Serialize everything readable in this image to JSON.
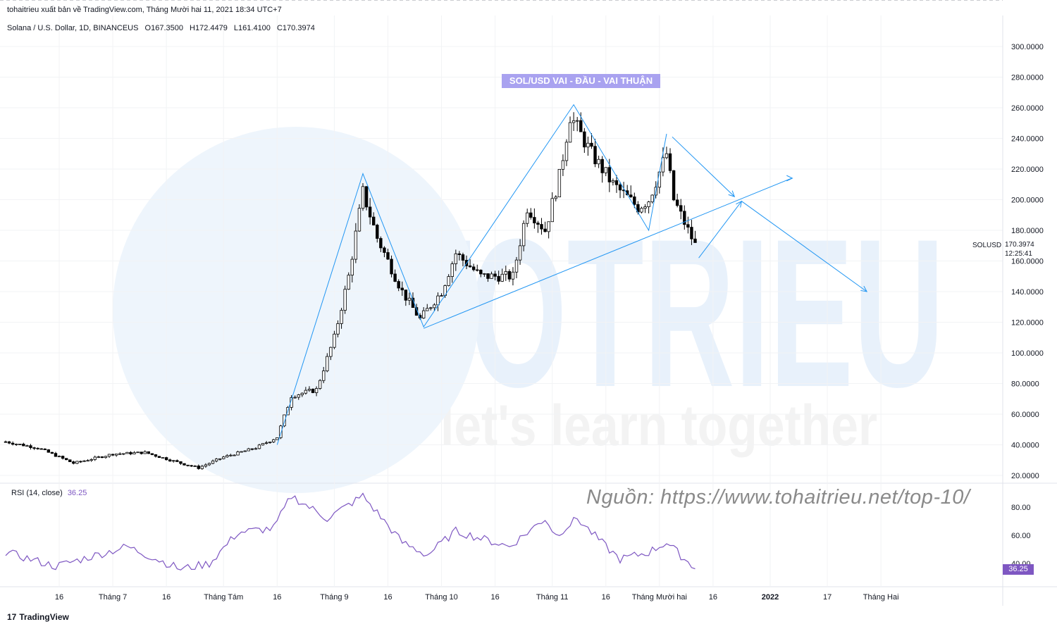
{
  "header": {
    "publish_info": "tohaitrieu xuất bản về TradingView.com, Tháng Mười hai 11, 2021 18:34 UTC+7",
    "symbol": "Solana / U.S. Dollar, 1D, BINANCEUS",
    "open": "O167.3500",
    "high": "H172.4479",
    "low": "L161.4100",
    "close": "C170.3974"
  },
  "annotation": {
    "title_box": "SOL/USD VAI - ĐẦU - VAI THUẬN",
    "source_credit": "Nguồn: https://www.tohaitrieu.net/top-10/",
    "watermark_main": "TOTRIEU",
    "watermark_tagline": "let's learn together"
  },
  "price_label": {
    "symbol": "SOLUSD",
    "price": "170.3974",
    "countdown": "12:25:41"
  },
  "rsi": {
    "legend": "RSI (14, close)",
    "value": "36.25",
    "upper": 70,
    "middle": 50,
    "lower": 30
  },
  "footer": {
    "brand": "TradingView",
    "logo_mark": "17"
  },
  "colors": {
    "up_candle": "#ffffff",
    "down_candle": "#000000",
    "drawing": "#2196f3",
    "rsi_line": "#7e57c2",
    "rsi_band": "#f3effb"
  },
  "chart_data": [
    {
      "type": "candlestick",
      "title": "Solana / U.S. Dollar, 1D, BINANCEUS",
      "ylim": [
        10,
        310
      ],
      "yticks": [
        "20.0000",
        "40.0000",
        "60.0000",
        "80.0000",
        "100.0000",
        "120.0000",
        "140.0000",
        "160.0000",
        "180.0000",
        "200.0000",
        "220.0000",
        "240.0000",
        "260.0000",
        "280.0000",
        "300.0000"
      ],
      "xticks": [
        "16",
        "Tháng 7",
        "16",
        "Tháng Tám",
        "16",
        "Tháng 9",
        "16",
        "Tháng 10",
        "16",
        "Tháng 11",
        "16",
        "Tháng Mười hai",
        "16",
        "2022",
        "17",
        "Tháng Hai"
      ],
      "anchors": [
        {
          "date": "2021-06-01",
          "close": 42
        },
        {
          "date": "2021-06-10",
          "close": 38
        },
        {
          "date": "2021-06-20",
          "close": 28
        },
        {
          "date": "2021-07-01",
          "close": 34
        },
        {
          "date": "2021-07-10",
          "close": 35
        },
        {
          "date": "2021-07-20",
          "close": 28
        },
        {
          "date": "2021-07-25",
          "close": 25
        },
        {
          "date": "2021-08-01",
          "close": 32
        },
        {
          "date": "2021-08-10",
          "close": 38
        },
        {
          "date": "2021-08-16",
          "close": 45
        },
        {
          "date": "2021-08-20",
          "close": 72
        },
        {
          "date": "2021-08-27",
          "close": 76
        },
        {
          "date": "2021-09-01",
          "close": 110
        },
        {
          "date": "2021-09-05",
          "close": 150
        },
        {
          "date": "2021-09-09",
          "close": 205
        },
        {
          "date": "2021-09-13",
          "close": 175
        },
        {
          "date": "2021-09-20",
          "close": 140
        },
        {
          "date": "2021-09-25",
          "close": 122
        },
        {
          "date": "2021-10-01",
          "close": 140
        },
        {
          "date": "2021-10-05",
          "close": 165
        },
        {
          "date": "2021-10-12",
          "close": 150
        },
        {
          "date": "2021-10-21",
          "close": 150
        },
        {
          "date": "2021-10-25",
          "close": 195
        },
        {
          "date": "2021-10-30",
          "close": 180
        },
        {
          "date": "2021-11-03",
          "close": 215
        },
        {
          "date": "2021-11-06",
          "close": 255
        },
        {
          "date": "2021-11-12",
          "close": 230
        },
        {
          "date": "2021-11-18",
          "close": 210
        },
        {
          "date": "2021-11-25",
          "close": 195
        },
        {
          "date": "2021-11-28",
          "close": 200
        },
        {
          "date": "2021-12-03",
          "close": 230
        },
        {
          "date": "2021-12-05",
          "close": 200
        },
        {
          "date": "2021-12-09",
          "close": 180
        },
        {
          "date": "2021-12-11",
          "close": 170.3974
        }
      ]
    },
    {
      "type": "line",
      "title": "RSI (14, close)",
      "ylim": [
        20,
        95
      ],
      "yticks": [
        "40.00",
        "60.00",
        "80.00"
      ],
      "anchors": [
        {
          "date": "2021-06-01",
          "value": 48
        },
        {
          "date": "2021-06-15",
          "value": 38
        },
        {
          "date": "2021-06-25",
          "value": 45
        },
        {
          "date": "2021-07-05",
          "value": 52
        },
        {
          "date": "2021-07-20",
          "value": 36
        },
        {
          "date": "2021-07-28",
          "value": 40
        },
        {
          "date": "2021-08-05",
          "value": 62
        },
        {
          "date": "2021-08-15",
          "value": 65
        },
        {
          "date": "2021-08-20",
          "value": 88
        },
        {
          "date": "2021-08-30",
          "value": 72
        },
        {
          "date": "2021-09-09",
          "value": 88
        },
        {
          "date": "2021-09-20",
          "value": 55
        },
        {
          "date": "2021-09-27",
          "value": 46
        },
        {
          "date": "2021-10-05",
          "value": 63
        },
        {
          "date": "2021-10-20",
          "value": 52
        },
        {
          "date": "2021-10-30",
          "value": 72
        },
        {
          "date": "2021-11-02",
          "value": 60
        },
        {
          "date": "2021-11-08",
          "value": 72
        },
        {
          "date": "2021-11-16",
          "value": 52
        },
        {
          "date": "2021-11-20",
          "value": 43
        },
        {
          "date": "2021-11-28",
          "value": 48
        },
        {
          "date": "2021-12-03",
          "value": 55
        },
        {
          "date": "2021-12-11",
          "value": 36.25
        }
      ]
    }
  ]
}
